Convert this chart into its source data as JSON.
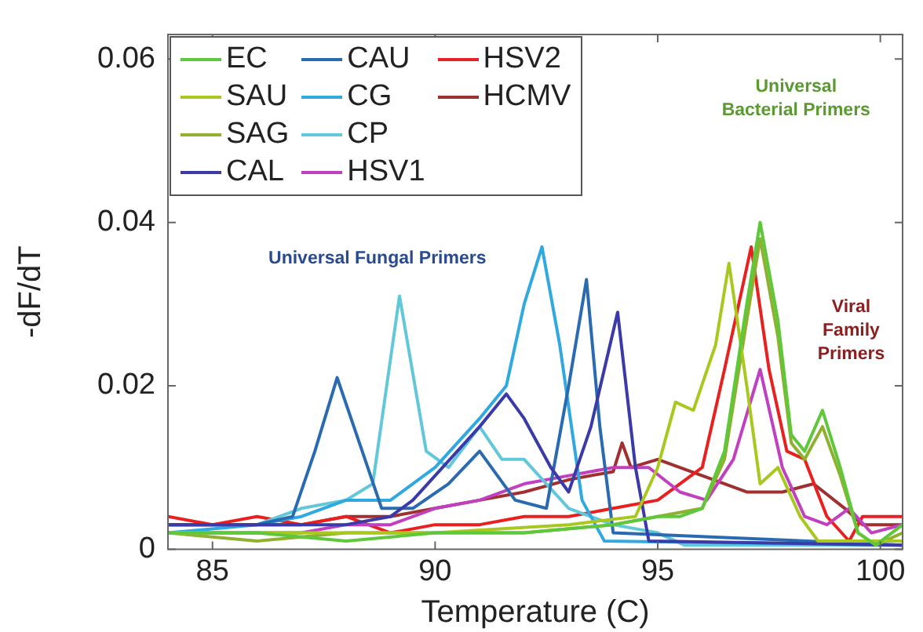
{
  "chart_data": {
    "type": "line",
    "xlabel": "Temperature (C)",
    "ylabel": "-dF/dT",
    "xlim": [
      84,
      100.5
    ],
    "ylim": [
      0,
      0.063
    ],
    "xticks": [
      85,
      90,
      95,
      100
    ],
    "yticks": [
      0,
      0.02,
      0.04,
      0.06
    ],
    "grid": false,
    "legend": "top left",
    "marker": "none",
    "line_style": "solid",
    "annotations": [
      "Universal Fungal Primers",
      "Universal\nBacterial Primers",
      "Viral\nFamily\nPrimers"
    ],
    "series": [
      {
        "name": "EC",
        "color": "#5ec83a",
        "x": [
          84,
          86,
          88,
          90,
          92,
          94,
          95,
          95.5,
          96,
          96.5,
          97,
          97.3,
          97.7,
          98,
          98.3,
          98.7,
          99.1,
          99.5,
          99.9,
          100.5
        ],
        "values": [
          0.002,
          0.002,
          0.001,
          0.002,
          0.002,
          0.003,
          0.004,
          0.004,
          0.005,
          0.012,
          0.03,
          0.04,
          0.028,
          0.014,
          0.012,
          0.017,
          0.01,
          0.002,
          0.0005,
          0.003
        ]
      },
      {
        "name": "SAU",
        "color": "#a8c820",
        "x": [
          84,
          87,
          90,
          93,
          94.5,
          95,
          95.4,
          95.8,
          96.3,
          96.6,
          97,
          97.3,
          97.7,
          98.2,
          98.6,
          100.5
        ],
        "values": [
          0.002,
          0.002,
          0.002,
          0.003,
          0.004,
          0.01,
          0.018,
          0.017,
          0.025,
          0.035,
          0.02,
          0.008,
          0.01,
          0.004,
          0.001,
          0.001
        ]
      },
      {
        "name": "SAG",
        "color": "#90b030",
        "x": [
          84,
          86,
          88,
          90,
          92,
          94,
          95,
          96,
          96.5,
          97,
          97.3,
          97.7,
          98,
          98.3,
          98.7,
          99.1,
          99.5,
          99.9,
          100.5
        ],
        "values": [
          0.002,
          0.001,
          0.002,
          0.002,
          0.002,
          0.003,
          0.004,
          0.005,
          0.011,
          0.028,
          0.038,
          0.026,
          0.013,
          0.011,
          0.015,
          0.009,
          0.002,
          0.0005,
          0.002
        ]
      },
      {
        "name": "CAL",
        "color": "#3a3aa8",
        "x": [
          84,
          86,
          88,
          89,
          89.5,
          90,
          91,
          91.6,
          92,
          92.6,
          93,
          93.5,
          94.1,
          94.5,
          94.8,
          100.5
        ],
        "values": [
          0.003,
          0.003,
          0.003,
          0.004,
          0.006,
          0.009,
          0.015,
          0.019,
          0.016,
          0.01,
          0.007,
          0.015,
          0.029,
          0.01,
          0.001,
          0.0005
        ]
      },
      {
        "name": "CAU",
        "color": "#2a6ab0",
        "x": [
          84,
          86,
          86.8,
          87.3,
          87.8,
          88.3,
          88.8,
          89.5,
          90.3,
          91,
          91.8,
          92.5,
          93,
          93.4,
          93.7,
          94,
          100.5
        ],
        "values": [
          0.003,
          0.003,
          0.004,
          0.012,
          0.021,
          0.013,
          0.005,
          0.005,
          0.008,
          0.012,
          0.006,
          0.005,
          0.02,
          0.033,
          0.015,
          0.002,
          0.0005
        ]
      },
      {
        "name": "CG",
        "color": "#30a8e0",
        "x": [
          84,
          86,
          87,
          88,
          89,
          90,
          91,
          91.6,
          92,
          92.4,
          92.8,
          93.3,
          93.8,
          100.5
        ],
        "values": [
          0.002,
          0.003,
          0.004,
          0.006,
          0.006,
          0.01,
          0.016,
          0.02,
          0.03,
          0.037,
          0.025,
          0.006,
          0.001,
          0.0005
        ]
      },
      {
        "name": "CP",
        "color": "#60c8d8",
        "x": [
          84,
          86,
          87,
          88,
          88.6,
          89.2,
          89.8,
          90.3,
          91,
          91.5,
          92,
          93,
          94,
          95,
          95.6,
          100.5
        ],
        "values": [
          0.003,
          0.003,
          0.005,
          0.006,
          0.008,
          0.031,
          0.012,
          0.01,
          0.015,
          0.011,
          0.011,
          0.005,
          0.003,
          0.002,
          0.0005,
          0.0005
        ]
      },
      {
        "name": "HSV1",
        "color": "#c040c0",
        "x": [
          84,
          87,
          88,
          89,
          90,
          91,
          92,
          93,
          94,
          94.8,
          95.5,
          96.1,
          96.7,
          97.3,
          97.8,
          98.3,
          98.8,
          99.3,
          99.8,
          100.5
        ],
        "values": [
          0.002,
          0.002,
          0.003,
          0.003,
          0.005,
          0.006,
          0.008,
          0.009,
          0.01,
          0.01,
          0.007,
          0.006,
          0.011,
          0.022,
          0.01,
          0.004,
          0.003,
          0.005,
          0.002,
          0.003
        ]
      },
      {
        "name": "HSV2",
        "color": "#e82020",
        "x": [
          84,
          85,
          86,
          87,
          88,
          89,
          90,
          91,
          92,
          93,
          94,
          95,
          96,
          96.5,
          97.1,
          97.5,
          97.9,
          98.3,
          98.8,
          99.3,
          99.6,
          100.5
        ],
        "values": [
          0.004,
          0.003,
          0.004,
          0.003,
          0.004,
          0.002,
          0.003,
          0.003,
          0.004,
          0.004,
          0.005,
          0.006,
          0.01,
          0.022,
          0.037,
          0.022,
          0.012,
          0.011,
          0.004,
          0.001,
          0.004,
          0.004
        ]
      },
      {
        "name": "HCMV",
        "color": "#a03030",
        "x": [
          84,
          87,
          88,
          89,
          90,
          91,
          92,
          93,
          94,
          94.2,
          94.4,
          95,
          96,
          97,
          97.8,
          98.5,
          99.2,
          99.6,
          100.5
        ],
        "values": [
          0.003,
          0.003,
          0.004,
          0.004,
          0.005,
          0.006,
          0.007,
          0.0085,
          0.0095,
          0.013,
          0.01,
          0.011,
          0.009,
          0.007,
          0.007,
          0.008,
          0.005,
          0.003,
          0.003
        ]
      }
    ]
  }
}
